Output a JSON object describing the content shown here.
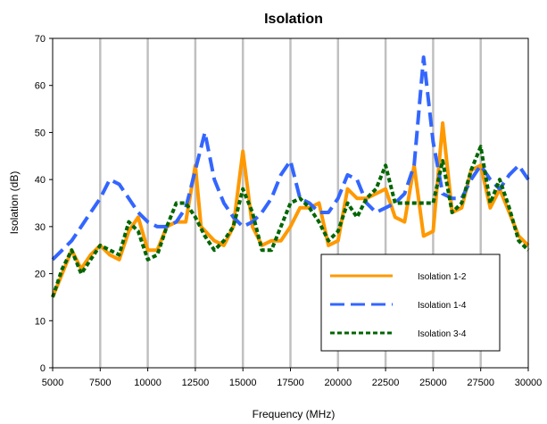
{
  "chart_data": {
    "type": "line",
    "title": "Isolation",
    "xlabel": "Frequency (MHz)",
    "ylabel": "Isolation (dB)",
    "xlim": [
      5000,
      30000
    ],
    "ylim": [
      0,
      70
    ],
    "xticks": [
      5000,
      7500,
      10000,
      12500,
      15000,
      17500,
      20000,
      22500,
      25000,
      27500,
      30000
    ],
    "yticks": [
      0,
      10,
      20,
      30,
      40,
      50,
      60,
      70
    ],
    "grid": "vertical",
    "legend_position": "bottom-right",
    "series": [
      {
        "name": "Isolation 1-2",
        "color": "#FF9900",
        "style": "solid",
        "x": [
          5000,
          5500,
          6000,
          6500,
          7000,
          7500,
          8000,
          8500,
          9000,
          9500,
          10000,
          10500,
          11000,
          11500,
          12000,
          12500,
          12800,
          13500,
          14000,
          14500,
          15000,
          15500,
          16000,
          16500,
          17000,
          17500,
          18000,
          18500,
          19000,
          19500,
          20000,
          20500,
          21000,
          21500,
          22000,
          22500,
          23000,
          23500,
          24000,
          24500,
          25000,
          25500,
          26000,
          26500,
          27000,
          27500,
          28000,
          28500,
          29000,
          29500,
          30000
        ],
        "y": [
          15,
          20,
          25,
          21,
          24,
          26,
          24,
          23,
          29,
          32,
          25,
          25,
          30,
          31,
          31,
          43,
          30,
          27,
          26,
          30,
          46,
          30,
          26,
          27,
          27,
          30,
          34,
          34,
          35,
          26,
          27,
          38,
          36,
          36,
          37,
          38,
          32,
          31,
          43,
          28,
          29,
          52,
          33,
          34,
          42,
          43,
          34,
          38,
          33,
          28,
          26
        ]
      },
      {
        "name": "Isolation 1-4",
        "color": "#3366FF",
        "style": "dashed",
        "x": [
          5000,
          5500,
          6000,
          6500,
          7000,
          7500,
          8000,
          8500,
          9000,
          9500,
          10000,
          10500,
          11000,
          11500,
          12000,
          12500,
          13000,
          13500,
          14000,
          14500,
          15000,
          15500,
          16000,
          16500,
          17000,
          17500,
          18000,
          18500,
          19000,
          19500,
          20000,
          20500,
          21000,
          21500,
          22000,
          22500,
          23000,
          23500,
          24000,
          24500,
          25000,
          25500,
          26000,
          26500,
          27000,
          27500,
          28000,
          28500,
          29000,
          29500,
          30000
        ],
        "y": [
          23,
          25,
          27,
          30,
          33,
          36,
          40,
          39,
          36,
          33,
          31,
          30,
          30,
          31,
          34,
          42,
          50,
          40,
          35,
          32,
          30,
          31,
          33,
          36,
          41,
          44,
          36,
          35,
          33,
          33,
          36,
          41,
          40,
          35,
          33,
          34,
          35,
          37,
          43,
          66,
          48,
          37,
          36,
          36,
          40,
          43,
          40,
          38,
          41,
          43,
          40
        ]
      },
      {
        "name": "Isolation 3-4",
        "color": "#006600",
        "style": "dotted",
        "x": [
          5000,
          5500,
          6000,
          6500,
          7000,
          7500,
          8000,
          8500,
          9000,
          9500,
          10000,
          10500,
          11000,
          11500,
          12000,
          12500,
          13000,
          13500,
          14000,
          14500,
          15000,
          15500,
          16000,
          16500,
          17000,
          17500,
          18000,
          18500,
          19000,
          19500,
          20000,
          20500,
          21000,
          21500,
          22000,
          22500,
          23000,
          23500,
          24000,
          24500,
          25000,
          25500,
          26000,
          26500,
          27000,
          27500,
          28000,
          28500,
          29000,
          29500,
          30000
        ],
        "y": [
          15,
          21,
          25,
          20,
          23,
          26,
          25,
          24,
          31,
          29,
          23,
          24,
          30,
          35,
          35,
          32,
          28,
          25,
          27,
          30,
          38,
          33,
          25,
          25,
          30,
          35,
          36,
          34,
          31,
          27,
          29,
          35,
          32,
          36,
          38,
          43,
          35,
          35,
          35,
          35,
          35,
          44,
          33,
          35,
          42,
          47,
          35,
          40,
          34,
          27,
          25
        ]
      }
    ]
  }
}
